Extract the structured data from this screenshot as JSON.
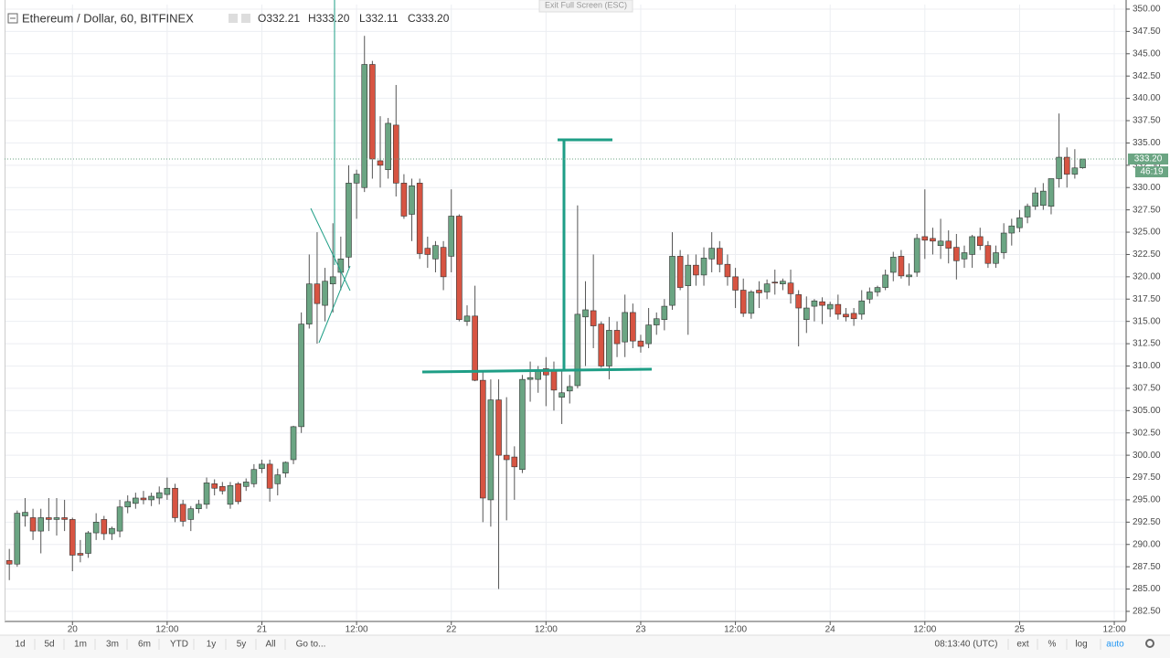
{
  "header": {
    "symbol": "Ethereum / Dollar, 60, BITFINEX",
    "ohlc": [
      {
        "key": "O",
        "value": "332.21"
      },
      {
        "key": "H",
        "value": "333.20"
      },
      {
        "key": "L",
        "value": "332.11"
      },
      {
        "key": "C",
        "value": "333.20"
      }
    ],
    "exit_fullscreen": "Exit Full Screen (ESC)"
  },
  "chart_data": {
    "type": "candlestick",
    "up_color": "#6ba583",
    "down_color": "#d75442",
    "grid": true,
    "ylim": [
      281.37,
      350.51
    ],
    "yticks": [
      {
        "value": 282.5,
        "label": "282.50"
      },
      {
        "value": 285,
        "label": "285.00"
      },
      {
        "value": 287.5,
        "label": "287.50"
      },
      {
        "value": 290,
        "label": "290.00"
      },
      {
        "value": 292.5,
        "label": "292.50"
      },
      {
        "value": 295,
        "label": "295.00"
      },
      {
        "value": 297.5,
        "label": "297.50"
      },
      {
        "value": 300,
        "label": "300.00"
      },
      {
        "value": 302.5,
        "label": "302.50"
      },
      {
        "value": 305,
        "label": "305.00"
      },
      {
        "value": 307.5,
        "label": "307.50"
      },
      {
        "value": 310,
        "label": "310.00"
      },
      {
        "value": 312.5,
        "label": "312.50"
      },
      {
        "value": 315,
        "label": "315.00"
      },
      {
        "value": 317.5,
        "label": "317.50"
      },
      {
        "value": 320,
        "label": "320.00"
      },
      {
        "value": 322.5,
        "label": "322.50"
      },
      {
        "value": 325,
        "label": "325.00"
      },
      {
        "value": 327.5,
        "label": "327.50"
      },
      {
        "value": 330,
        "label": "330.00"
      },
      {
        "value": 332.5,
        "label": "332.50"
      },
      {
        "value": 335,
        "label": "335.00"
      },
      {
        "value": 337.5,
        "label": "337.50"
      },
      {
        "value": 340,
        "label": "340.00"
      },
      {
        "value": 342.5,
        "label": "342.50"
      },
      {
        "value": 345,
        "label": "345.00"
      },
      {
        "value": 347.5,
        "label": "347.50"
      },
      {
        "value": 350,
        "label": "350.00"
      }
    ],
    "xlim": [
      -0.6,
      141.5
    ],
    "xticks": [
      {
        "value": 8,
        "label": "20"
      },
      {
        "value": 20,
        "label": "12:00"
      },
      {
        "value": 32,
        "label": "21"
      },
      {
        "value": 44,
        "label": "12:00"
      },
      {
        "value": 56,
        "label": "22"
      },
      {
        "value": 68,
        "label": "12:00"
      },
      {
        "value": 80,
        "label": "23"
      },
      {
        "value": 92,
        "label": "12:00"
      },
      {
        "value": 104,
        "label": "24"
      },
      {
        "value": 116,
        "label": "12:00"
      },
      {
        "value": 128,
        "label": "25"
      },
      {
        "value": 140,
        "label": "12:00"
      }
    ],
    "open": [
      288.2,
      287.8,
      293.2,
      293,
      291.5,
      293,
      292.8,
      293,
      292.8,
      289,
      289,
      291.3,
      292.8,
      291.2,
      291.5,
      294.2,
      294.6,
      295.2,
      295,
      295.2,
      295.6,
      296.3,
      294.5,
      292.8,
      294,
      294.5,
      296.8,
      296.5,
      294.5,
      296.8,
      296.5,
      296.8,
      298.5,
      299,
      296.8,
      298,
      299.5,
      303.2,
      314.7,
      319.2,
      316.8,
      319.2,
      320.5,
      322.2,
      330.5,
      330,
      343.8,
      333,
      332,
      337,
      330.5,
      327,
      330.5,
      323.2,
      322,
      323.3,
      322.3,
      326.8,
      315,
      315.6,
      308.4,
      295,
      306.2,
      300,
      299.8,
      298.4,
      308.5,
      308.5,
      309.7,
      309.6,
      306.5,
      307.2,
      307.8,
      315.5,
      316.2,
      314.7,
      310,
      314,
      312.7,
      316,
      312.8,
      312.5,
      314.6,
      315.2,
      316.8,
      322.3,
      319,
      321.3,
      320.2,
      322,
      323.2,
      321.4,
      320,
      318.5,
      315.9,
      318.5,
      318.3,
      319.4,
      319.2,
      319.3,
      318,
      315.2,
      316.7,
      317.2,
      316.4,
      316.9,
      315.8,
      315.9,
      315.8,
      317.5,
      318.3,
      318.8,
      320.5,
      322.3,
      320,
      320.5,
      324.5,
      324.3,
      323.5,
      324,
      323.3,
      322,
      322.5,
      324.5,
      323.5,
      321.5,
      322.7,
      324.9,
      325.5,
      326.7,
      327.9,
      328,
      327.9,
      331,
      333.4,
      331.5,
      332.21
    ],
    "high": [
      289.5,
      293.8,
      295.2,
      294,
      294,
      295.2,
      295.2,
      295,
      293,
      290.5,
      291.5,
      293.5,
      293.2,
      292,
      295,
      295.5,
      295.8,
      296,
      295.8,
      296.5,
      297.5,
      296.8,
      295,
      294.3,
      295,
      297.5,
      297.3,
      297,
      297,
      297,
      297.4,
      299,
      299.5,
      299.5,
      298.5,
      299.3,
      303.3,
      316,
      322.5,
      325,
      321,
      326,
      324.5,
      332.5,
      332,
      347,
      344.2,
      338,
      337.8,
      341.5,
      331.5,
      331,
      331,
      324.5,
      324,
      324,
      329.8,
      327,
      316.8,
      319,
      309.5,
      308.5,
      308.5,
      306.5,
      301,
      309,
      310.5,
      310,
      311,
      310.5,
      309.5,
      309,
      328,
      319.5,
      322.5,
      315,
      315.5,
      315,
      318,
      317,
      313.5,
      316.5,
      316,
      317.5,
      325,
      323,
      322.5,
      322.5,
      323.3,
      325,
      324,
      322.5,
      321,
      319.8,
      318.5,
      319.5,
      319.7,
      320.8,
      319.8,
      320.8,
      318.5,
      317.8,
      317.5,
      317.7,
      317.2,
      318,
      316.5,
      316.5,
      318.5,
      318.8,
      319,
      320.8,
      322.8,
      323,
      321.5,
      324.8,
      329.8,
      325.5,
      326.5,
      325.2,
      324.8,
      323.5,
      324.7,
      325.5,
      324,
      323.5,
      326,
      326.5,
      327.5,
      328.2,
      330,
      330.5,
      331,
      338.3,
      334.5,
      334.3,
      333.2
    ],
    "low": [
      286,
      287.5,
      292,
      290.5,
      289,
      291.5,
      291,
      291.5,
      287,
      288,
      288.5,
      290.5,
      290.5,
      290.5,
      290.8,
      293.5,
      294,
      294.5,
      294.3,
      294.5,
      295,
      292.5,
      292,
      291.5,
      293.5,
      294,
      295.5,
      295.6,
      294,
      294.5,
      296,
      296.4,
      298,
      294.8,
      295.5,
      297.5,
      299,
      302.5,
      314.2,
      312.5,
      315,
      316,
      318.5,
      321,
      326.5,
      329.5,
      331,
      330,
      331,
      329,
      326.5,
      324,
      322,
      321,
      320.5,
      318.5,
      320.5,
      315,
      314.5,
      308.3,
      292.5,
      292,
      285,
      292.7,
      295,
      298,
      306,
      307,
      305.5,
      305,
      303.5,
      305.8,
      307.5,
      310,
      312,
      309.8,
      308.5,
      311,
      311,
      312,
      311.5,
      312,
      313.5,
      314,
      316.3,
      318.5,
      313.5,
      319,
      319,
      320.5,
      320.5,
      319,
      316.5,
      315.5,
      315.3,
      316.5,
      317.5,
      318,
      318.5,
      317,
      312.2,
      313.7,
      315,
      314.7,
      315.5,
      315.2,
      315,
      314.5,
      315.2,
      317,
      317.8,
      318.5,
      319.5,
      319.8,
      319,
      320,
      322,
      322.5,
      322,
      321.5,
      319.7,
      321,
      321,
      323,
      321,
      321,
      322,
      323.5,
      325,
      326,
      327.5,
      327.5,
      327,
      330,
      330,
      331,
      332.11
    ],
    "close": [
      287.8,
      293.5,
      293.6,
      291.5,
      293,
      292.8,
      293,
      292.8,
      288.8,
      288.8,
      291.3,
      292.5,
      291.2,
      291.8,
      294.2,
      294.8,
      295.2,
      295,
      295.4,
      295.8,
      296.3,
      293,
      292.6,
      294,
      294.5,
      296.9,
      296.3,
      296,
      296.6,
      294.8,
      297,
      298.4,
      299,
      296.3,
      297.8,
      299.2,
      303.2,
      314.7,
      319.2,
      317,
      319.5,
      320,
      322,
      330.5,
      331.5,
      343.8,
      333.2,
      332.5,
      337.2,
      330.5,
      326.8,
      330.2,
      322.6,
      322.5,
      323.5,
      320,
      326.8,
      315.2,
      315.6,
      308.4,
      295.2,
      306.2,
      300,
      299.5,
      298.7,
      308.5,
      308.7,
      309.5,
      309,
      307.3,
      307,
      307.7,
      315.8,
      316.3,
      314.5,
      310,
      314,
      312.5,
      316,
      312.8,
      312.2,
      314.6,
      315.3,
      316.7,
      322.3,
      318.8,
      321.3,
      320.2,
      322.1,
      323.2,
      321.4,
      320,
      318.5,
      315.9,
      318.3,
      318.2,
      319.2,
      319.3,
      319.5,
      318.1,
      316.5,
      316.5,
      317.3,
      316.8,
      316.9,
      315.8,
      315.5,
      315.3,
      317.3,
      318.3,
      318.8,
      320.2,
      322.2,
      320.1,
      320.2,
      324.3,
      324.1,
      324,
      324,
      323.2,
      321.8,
      322.7,
      324.5,
      323.5,
      321.5,
      322.7,
      324.9,
      325.7,
      326.6,
      327.9,
      329.4,
      329.6,
      331,
      333.4,
      331.5,
      332.2,
      333.2
    ],
    "last_price": 333.2,
    "last_price_label": "333.20",
    "countdown": "46:19"
  },
  "toolbar": {
    "ranges": [
      "1d",
      "5d",
      "1m",
      "3m",
      "6m",
      "YTD",
      "1y",
      "5y",
      "All"
    ],
    "goto": "Go to...",
    "clock": "08:13:40 (UTC)",
    "toggles": [
      "ext",
      "%",
      "log",
      "auto"
    ]
  }
}
